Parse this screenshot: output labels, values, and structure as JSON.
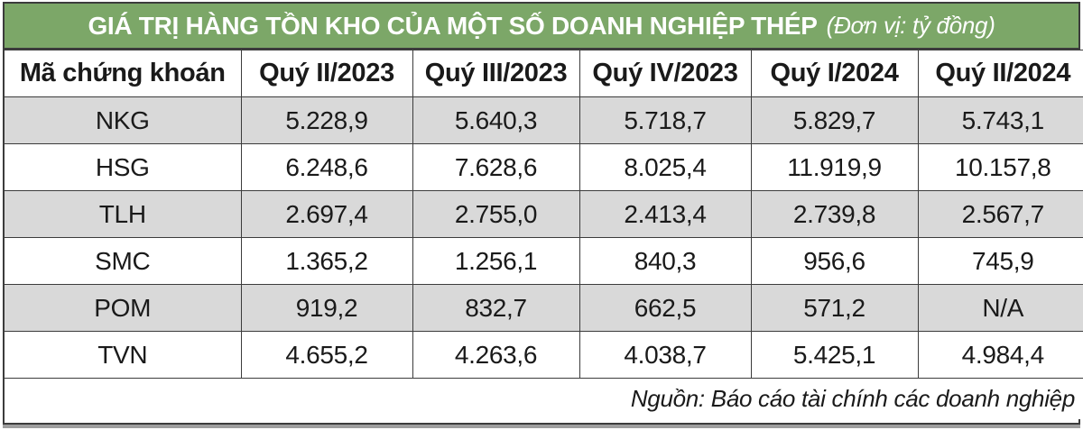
{
  "title": {
    "main": "GIÁ TRỊ HÀNG TỒN KHO CỦA MỘT SỐ DOANH NGHIỆP THÉP",
    "unit_note": "(Đơn vị: tỷ đồng)"
  },
  "colors": {
    "title_band_green": "#7CA768",
    "title_text": "#FFFFFF",
    "row_alt_gray": "#D9D9D9",
    "row_white": "#FFFFFF",
    "border_dark": "#3C3C3C",
    "bottom_shadow_gray": "#9E9E9E",
    "cell_text": "#1A1A1A"
  },
  "table": {
    "columns": [
      "Mã chứng khoán",
      "Quý II/2023",
      "Quý III/2023",
      "Quý IV/2023",
      "Quý I/2024",
      "Quý II/2024"
    ],
    "rows": [
      {
        "ticker": "NKG",
        "values": [
          "5.228,9",
          "5.640,3",
          "5.718,7",
          "5.829,7",
          "5.743,1"
        ]
      },
      {
        "ticker": "HSG",
        "values": [
          "6.248,6",
          "7.628,6",
          "8.025,4",
          "11.919,9",
          "10.157,8"
        ]
      },
      {
        "ticker": "TLH",
        "values": [
          "2.697,4",
          "2.755,0",
          "2.413,4",
          "2.739,8",
          "2.567,7"
        ]
      },
      {
        "ticker": "SMC",
        "values": [
          "1.365,2",
          "1.256,1",
          "840,3",
          "956,6",
          "745,9"
        ]
      },
      {
        "ticker": "POM",
        "values": [
          "919,2",
          "832,7",
          "662,5",
          "571,2",
          "N/A"
        ]
      },
      {
        "ticker": "TVN",
        "values": [
          "4.655,2",
          "4.263,6",
          "4.038,7",
          "5.425,1",
          "4.984,4"
        ]
      }
    ],
    "source": "Nguồn: Báo cáo tài chính các doanh nghiệp"
  },
  "chart_data": {
    "type": "table",
    "title": "GIÁ TRỊ HÀNG TỒN KHO CỦA MỘT SỐ DOANH NGHIỆP THÉP",
    "unit": "tỷ đồng",
    "categories": [
      "Quý II/2023",
      "Quý III/2023",
      "Quý IV/2023",
      "Quý I/2024",
      "Quý II/2024"
    ],
    "series": [
      {
        "name": "NKG",
        "values": [
          5228.9,
          5640.3,
          5718.7,
          5829.7,
          5743.1
        ]
      },
      {
        "name": "HSG",
        "values": [
          6248.6,
          7628.6,
          8025.4,
          11919.9,
          10157.8
        ]
      },
      {
        "name": "TLH",
        "values": [
          2697.4,
          2755.0,
          2413.4,
          2739.8,
          2567.7
        ]
      },
      {
        "name": "SMC",
        "values": [
          1365.2,
          1256.1,
          840.3,
          956.6,
          745.9
        ]
      },
      {
        "name": "POM",
        "values": [
          919.2,
          832.7,
          662.5,
          571.2,
          null
        ]
      },
      {
        "name": "TVN",
        "values": [
          4655.2,
          4263.6,
          4038.7,
          5425.1,
          4984.4
        ]
      }
    ],
    "source": "Nguồn: Báo cáo tài chính các doanh nghiệp"
  }
}
